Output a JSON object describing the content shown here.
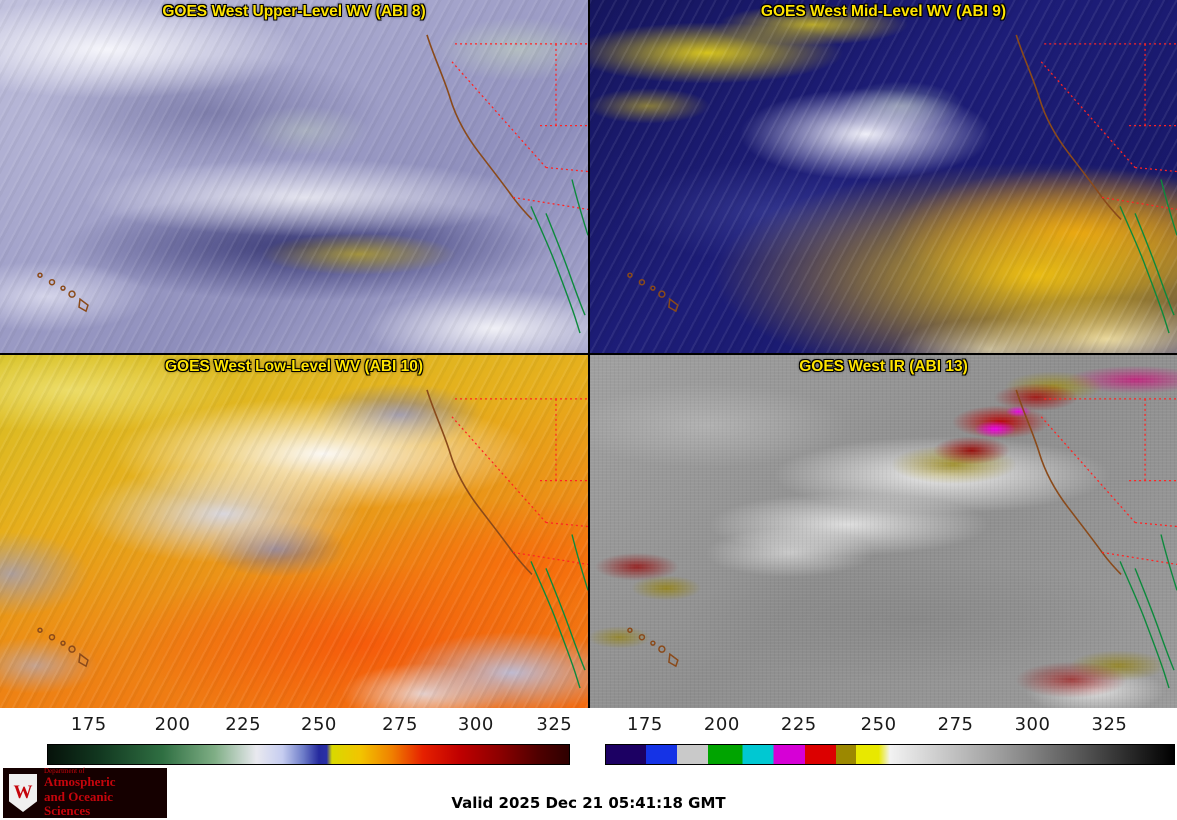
{
  "colors": {
    "title": "#ffe400",
    "state_border": "#ff2424",
    "coastline": "#8a4a1a",
    "mexico_coast": "#0c8a3c",
    "logo_bg": "#150000",
    "logo_text": "#c5050c",
    "tick_text": "#1a1a1a"
  },
  "panels": [
    {
      "title": "GOES West Upper-Level WV (ABI 8)"
    },
    {
      "title": "GOES West Mid-Level WV (ABI 9)"
    },
    {
      "title": "GOES West Low-Level WV (ABI 10)"
    },
    {
      "title": "GOES West IR (ABI 13)"
    }
  ],
  "colorbars": {
    "wv": {
      "label": "water-vapor-brightness-temperature-scale",
      "ticks": [
        "175",
        "200",
        "225",
        "250",
        "275",
        "300",
        "325"
      ],
      "tick_pos": [
        8,
        24,
        37.5,
        52,
        67.5,
        82,
        97
      ],
      "stops": [
        [
          "#06120a",
          0
        ],
        [
          "#123820",
          10
        ],
        [
          "#2f6f42",
          22
        ],
        [
          "#7fae85",
          32
        ],
        [
          "#e9e9ef",
          40
        ],
        [
          "#c6cdf0",
          45
        ],
        [
          "#6d7cc8",
          49
        ],
        [
          "#252a9e",
          52
        ],
        [
          "#2a2fa6",
          53.5
        ],
        [
          "#d9d900",
          54.5
        ],
        [
          "#f2c400",
          60
        ],
        [
          "#f08000",
          66
        ],
        [
          "#e62000",
          72
        ],
        [
          "#c00000",
          79
        ],
        [
          "#8a0000",
          87
        ],
        [
          "#500000",
          94
        ],
        [
          "#2e0000",
          100
        ]
      ]
    },
    "ir": {
      "label": "infrared-brightness-temperature-scale",
      "ticks": [
        "175",
        "200",
        "225",
        "250",
        "275",
        "300",
        "325"
      ],
      "tick_pos": [
        7,
        20.5,
        34,
        48,
        61.5,
        75,
        88.5
      ],
      "stops": [
        [
          "#1c0063",
          0
        ],
        [
          "#1c0063",
          7
        ],
        [
          "#1533e6",
          7
        ],
        [
          "#1533e6",
          12.5
        ],
        [
          "#c9c9c9",
          12.5
        ],
        [
          "#c9c9c9",
          18
        ],
        [
          "#00a400",
          18
        ],
        [
          "#00a400",
          24
        ],
        [
          "#00c8d2",
          24
        ],
        [
          "#00c8d2",
          29.5
        ],
        [
          "#d600d6",
          29.5
        ],
        [
          "#d600d6",
          35
        ],
        [
          "#dc0000",
          35
        ],
        [
          "#dc0000",
          40.5
        ],
        [
          "#9c8800",
          40.5
        ],
        [
          "#9c8800",
          44
        ],
        [
          "#e8e800",
          44
        ],
        [
          "#e8e800",
          48
        ],
        [
          "#f2f2f2",
          50
        ],
        [
          "#9a9a9a",
          70
        ],
        [
          "#4a4a4a",
          86
        ],
        [
          "#000000",
          100
        ]
      ]
    }
  },
  "footer": {
    "valid_time": "Valid 2025 Dec 21 05:41:18 GMT"
  },
  "logo": {
    "dept": "Department of",
    "line1": "Atmospheric",
    "line2": "and Oceanic Sciences",
    "crest_letter": "W"
  }
}
